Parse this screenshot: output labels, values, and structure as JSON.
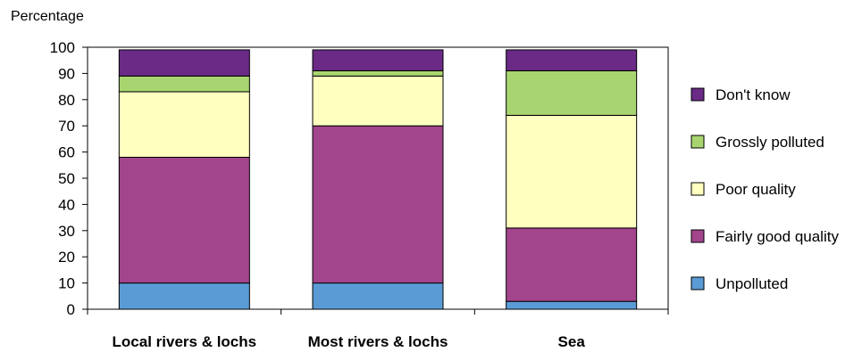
{
  "chart_data": {
    "type": "bar",
    "stacked": true,
    "title": "",
    "xlabel": "",
    "ylabel": "Percentage",
    "ylim": [
      0,
      100
    ],
    "yticks": [
      0,
      10,
      20,
      30,
      40,
      50,
      60,
      70,
      80,
      90,
      100
    ],
    "categories": [
      "Local rivers & lochs",
      "Most rivers & lochs",
      "Sea"
    ],
    "series": [
      {
        "name": "Unpolluted",
        "color": "#5b9bd5",
        "values": [
          10,
          10,
          3
        ]
      },
      {
        "name": "Fairly good quality",
        "color": "#a2458c",
        "values": [
          48,
          60,
          28
        ]
      },
      {
        "name": "Poor quality",
        "color": "#ffffc0",
        "values": [
          25,
          19,
          43
        ]
      },
      {
        "name": "Grossly polluted",
        "color": "#a9d571",
        "values": [
          6,
          2,
          17
        ]
      },
      {
        "name": "Don't know",
        "color": "#6a2a86",
        "values": [
          10,
          8,
          8
        ]
      }
    ],
    "legend_order": [
      "Don't know",
      "Grossly polluted",
      "Poor quality",
      "Fairly good quality",
      "Unpolluted"
    ],
    "legend_position": "right",
    "grid": false
  }
}
